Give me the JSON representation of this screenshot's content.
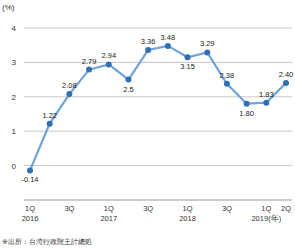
{
  "chart_data": {
    "type": "line",
    "ylabel": "(%)",
    "annotations": [
      "※出所：台湾行政院主計總処"
    ],
    "categories": [
      "1Q\n2016",
      null,
      "3Q",
      null,
      "1Q\n2017",
      null,
      "3Q",
      null,
      "1Q\n2018",
      null,
      "3Q",
      null,
      "1Q\n2019(年)",
      "2Q"
    ],
    "values": [
      -0.14,
      1.22,
      2.08,
      2.79,
      2.94,
      2.5,
      3.36,
      3.48,
      3.15,
      3.29,
      2.38,
      1.8,
      1.83,
      2.4
    ],
    "value_labels": [
      "-0.14",
      "1.22",
      "2.08",
      "2.79",
      "2.94",
      "2.5",
      "3.36",
      "3.48",
      "3.15",
      "3.29",
      "2.38",
      "1.80",
      "1.83",
      "2.40"
    ],
    "color": "#6fa3dc",
    "marker": "circle",
    "ylim": [
      -1,
      4
    ],
    "yticks": [
      0,
      1,
      2,
      3,
      4
    ],
    "grid": true,
    "data_labels": true
  }
}
